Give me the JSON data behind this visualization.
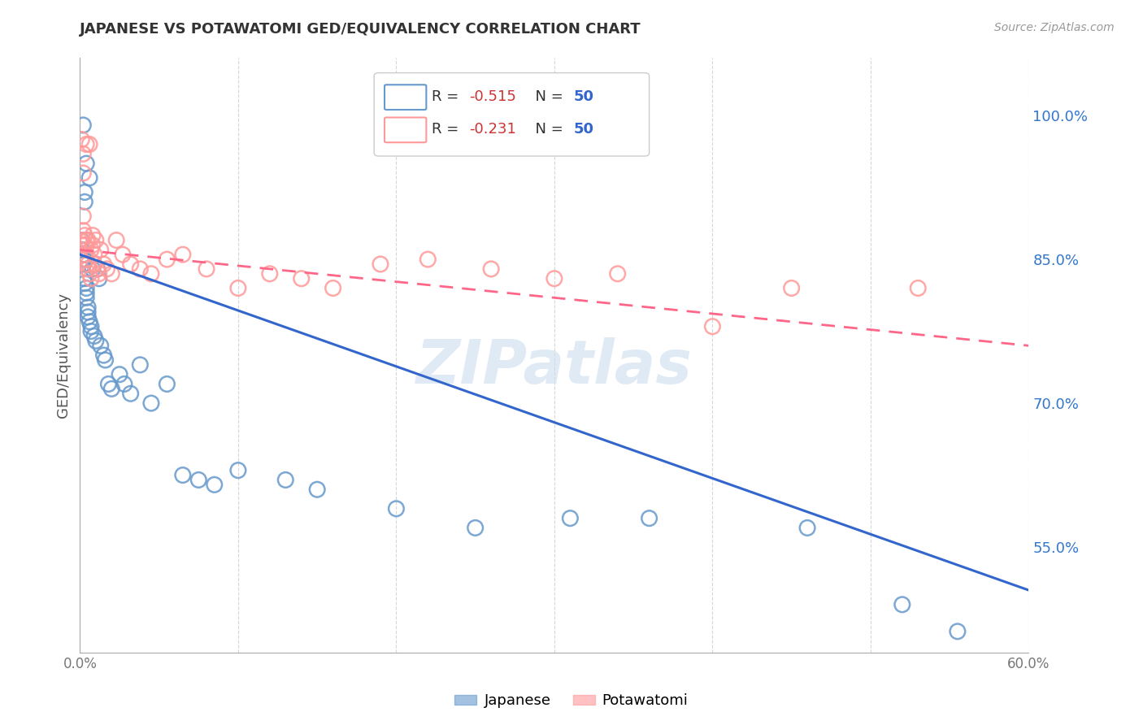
{
  "title": "JAPANESE VS POTAWATOMI GED/EQUIVALENCY CORRELATION CHART",
  "source": "Source: ZipAtlas.com",
  "ylabel_left": "GED/Equivalency",
  "xlim": [
    0.0,
    0.6
  ],
  "ylim": [
    0.44,
    1.06
  ],
  "ylabel_right_ticks": [
    0.55,
    0.7,
    0.85,
    1.0
  ],
  "ylabel_right_labels": [
    "55.0%",
    "70.0%",
    "85.0%",
    "100.0%"
  ],
  "legend_japanese_r": "R = -0.515",
  "legend_japanese_n": "N = 50",
  "legend_potawatomi_r": "R = -0.231",
  "legend_potawatomi_n": "N = 50",
  "japanese_color": "#6699CC",
  "potawatomi_color": "#FF9999",
  "japanese_line_color": "#3366CC",
  "potawatomi_line_color": "#FF6688",
  "watermark": "ZIPatlas",
  "watermark_color": "#CCDDEE",
  "japanese_x": [
    0.001,
    0.001,
    0.002,
    0.002,
    0.002,
    0.002,
    0.003,
    0.003,
    0.003,
    0.003,
    0.004,
    0.004,
    0.004,
    0.004,
    0.005,
    0.005,
    0.005,
    0.006,
    0.006,
    0.007,
    0.007,
    0.008,
    0.009,
    0.01,
    0.011,
    0.012,
    0.013,
    0.015,
    0.016,
    0.018,
    0.02,
    0.025,
    0.028,
    0.032,
    0.038,
    0.045,
    0.055,
    0.065,
    0.075,
    0.085,
    0.1,
    0.13,
    0.15,
    0.2,
    0.25,
    0.31,
    0.36,
    0.46,
    0.52,
    0.555
  ],
  "japanese_y": [
    0.87,
    0.86,
    0.99,
    0.855,
    0.85,
    0.845,
    0.92,
    0.83,
    0.91,
    0.825,
    0.82,
    0.815,
    0.81,
    0.95,
    0.8,
    0.795,
    0.79,
    0.935,
    0.785,
    0.78,
    0.775,
    0.84,
    0.77,
    0.765,
    0.84,
    0.83,
    0.76,
    0.75,
    0.745,
    0.72,
    0.715,
    0.73,
    0.72,
    0.71,
    0.74,
    0.7,
    0.72,
    0.625,
    0.62,
    0.615,
    0.63,
    0.62,
    0.61,
    0.59,
    0.57,
    0.58,
    0.58,
    0.57,
    0.49,
    0.462
  ],
  "potawatomi_x": [
    0.001,
    0.001,
    0.002,
    0.002,
    0.002,
    0.002,
    0.003,
    0.003,
    0.003,
    0.004,
    0.004,
    0.004,
    0.005,
    0.005,
    0.005,
    0.006,
    0.006,
    0.007,
    0.007,
    0.008,
    0.008,
    0.009,
    0.009,
    0.01,
    0.011,
    0.012,
    0.013,
    0.015,
    0.017,
    0.02,
    0.023,
    0.027,
    0.032,
    0.038,
    0.045,
    0.055,
    0.065,
    0.08,
    0.1,
    0.12,
    0.14,
    0.16,
    0.19,
    0.22,
    0.26,
    0.3,
    0.34,
    0.4,
    0.45,
    0.53
  ],
  "potawatomi_y": [
    0.87,
    0.975,
    0.96,
    0.94,
    0.895,
    0.88,
    0.875,
    0.865,
    0.855,
    0.97,
    0.87,
    0.85,
    0.845,
    0.87,
    0.84,
    0.97,
    0.835,
    0.86,
    0.83,
    0.875,
    0.865,
    0.855,
    0.845,
    0.87,
    0.84,
    0.835,
    0.86,
    0.845,
    0.84,
    0.835,
    0.87,
    0.855,
    0.845,
    0.84,
    0.835,
    0.85,
    0.855,
    0.84,
    0.82,
    0.835,
    0.83,
    0.82,
    0.845,
    0.85,
    0.84,
    0.83,
    0.835,
    0.78,
    0.82,
    0.82
  ],
  "jap_line_x0": 0.0,
  "jap_line_x1": 0.6,
  "jap_line_y0": 0.855,
  "jap_line_y1": 0.505,
  "pot_line_x0": 0.0,
  "pot_line_x1": 0.6,
  "pot_line_y0": 0.86,
  "pot_line_y1": 0.76
}
